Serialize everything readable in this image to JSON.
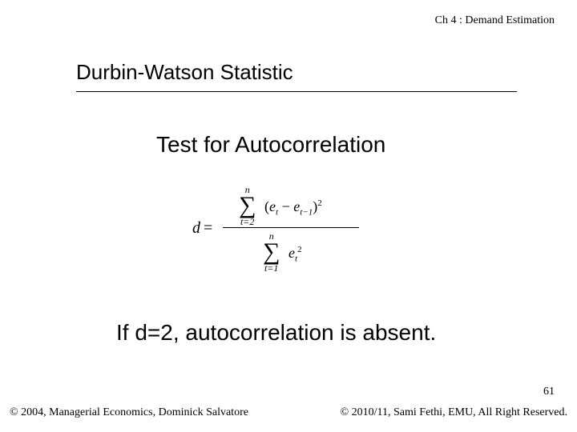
{
  "header": {
    "chapter": "Ch 4 : Demand Estimation"
  },
  "title": "Durbin-Watson Statistic",
  "subtitle": "Test for Autocorrelation",
  "formula": {
    "lhs_var": "d",
    "eq": "=",
    "num_sigma_upper": "n",
    "num_sigma_lower": "t=2",
    "num_lparen": "(",
    "num_e1": "e",
    "num_sub1": "t",
    "num_minus": "−",
    "num_e2": "e",
    "num_sub2": "t−1",
    "num_rparen": ")",
    "num_pow": "2",
    "den_sigma_upper": "n",
    "den_sigma_lower": "t=1",
    "den_e": "e",
    "den_sub": "t",
    "den_pow": "2"
  },
  "conclusion": "If d=2, autocorrelation is absent.",
  "page_number": "61",
  "footer": {
    "left": "© 2004,  Managerial Economics, Dominick Salvatore",
    "right": "© 2010/11, Sami Fethi, EMU, All Right Reserved."
  },
  "style": {
    "background": "#ffffff",
    "text_color": "#000000",
    "title_fontsize_pt": 26,
    "subtitle_fontsize_pt": 28,
    "conclusion_fontsize_pt": 28,
    "header_fontsize_pt": 14,
    "footer_fontsize_pt": 14,
    "body_font": "Arial",
    "serif_font": "Georgia",
    "formula_font": "Times New Roman",
    "rule_color": "#000000"
  }
}
